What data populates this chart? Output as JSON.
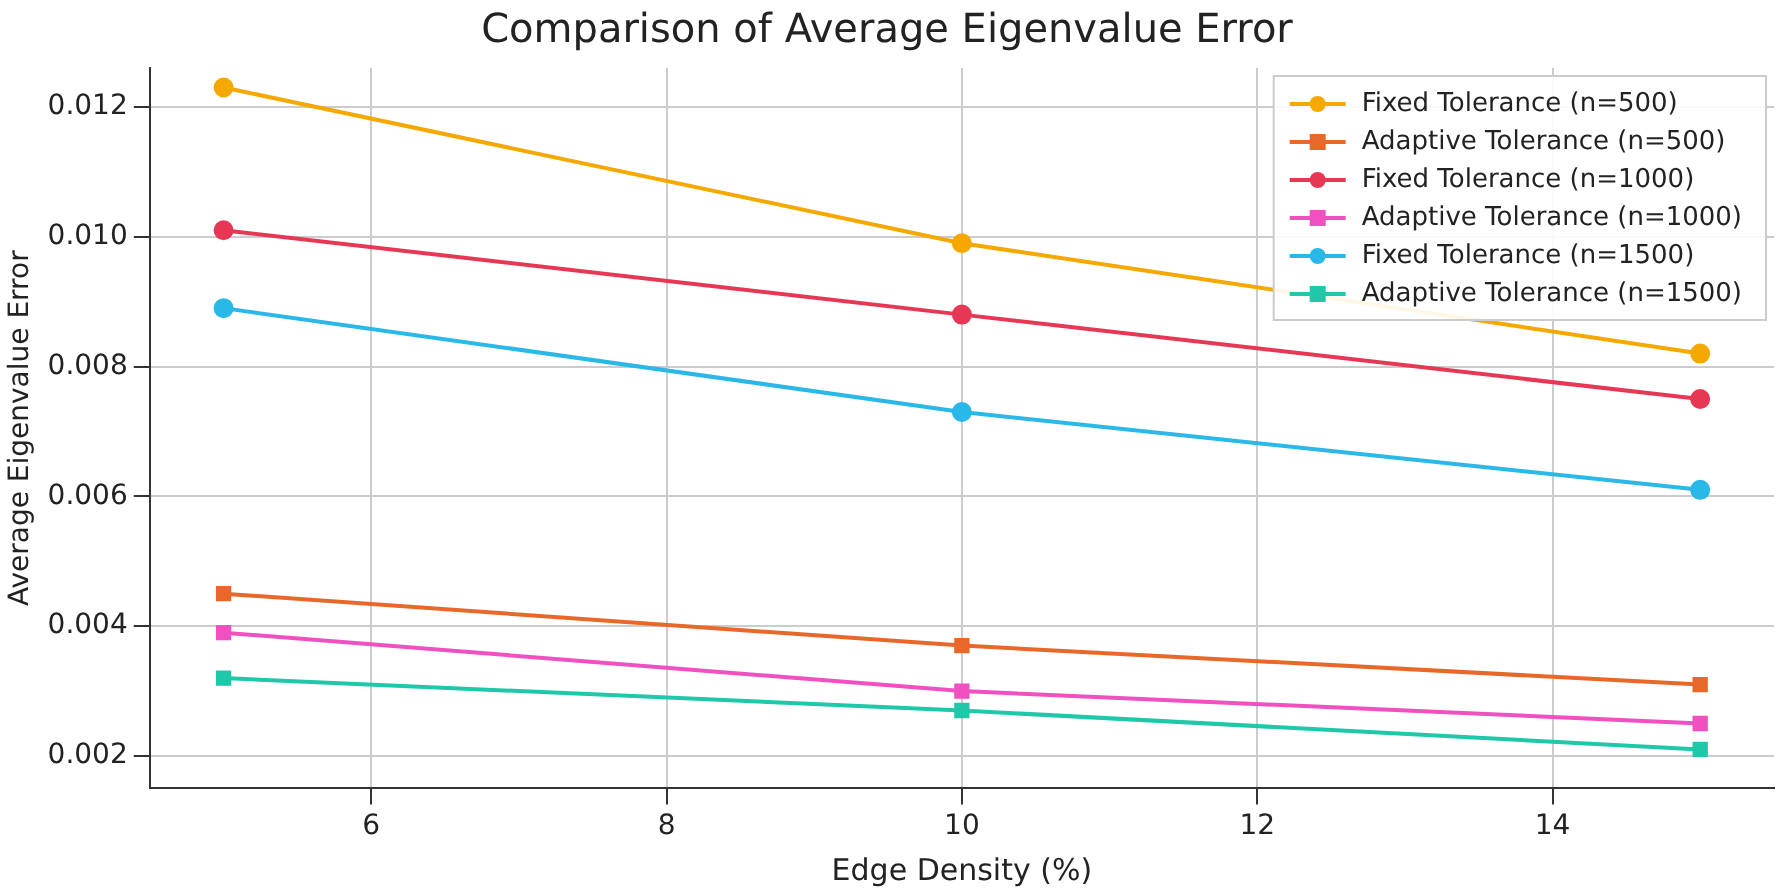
{
  "chart_data": {
    "type": "line",
    "title": "Comparison of Average Eigenvalue Error",
    "xlabel": "Edge Density (%)",
    "ylabel": "Average Eigenvalue Error",
    "x": [
      5,
      10,
      15
    ],
    "xlim": [
      4.5,
      15.5
    ],
    "xticks": [
      6,
      8,
      10,
      12,
      14
    ],
    "ylim": [
      0.0015,
      0.0126
    ],
    "yticks": [
      0.002,
      0.004,
      0.006,
      0.008,
      {
        "value": 0.01,
        "label": "0.010"
      },
      0.012
    ],
    "grid": true,
    "legend": "top right",
    "line_style": "solid",
    "series": [
      {
        "name": "Fixed Tolerance (n=500)",
        "color": "#f5a800",
        "marker": "circle",
        "values": [
          0.0123,
          0.0099,
          0.0082
        ]
      },
      {
        "name": "Adaptive Tolerance (n=500)",
        "color": "#e8682a",
        "marker": "square",
        "values": [
          0.0045,
          0.0037,
          0.0031
        ]
      },
      {
        "name": "Fixed Tolerance (n=1000)",
        "color": "#e63855",
        "marker": "circle",
        "values": [
          0.0101,
          0.0088,
          0.0075
        ]
      },
      {
        "name": "Adaptive Tolerance (n=1000)",
        "color": "#f050c0",
        "marker": "square",
        "values": [
          0.0039,
          0.003,
          0.0025
        ]
      },
      {
        "name": "Fixed Tolerance (n=1500)",
        "color": "#29b8e8",
        "marker": "circle",
        "values": [
          0.0089,
          0.0073,
          0.0061
        ]
      },
      {
        "name": "Adaptive Tolerance (n=1500)",
        "color": "#1fc8a8",
        "marker": "square",
        "values": [
          0.0032,
          0.0027,
          0.0021
        ]
      }
    ]
  }
}
